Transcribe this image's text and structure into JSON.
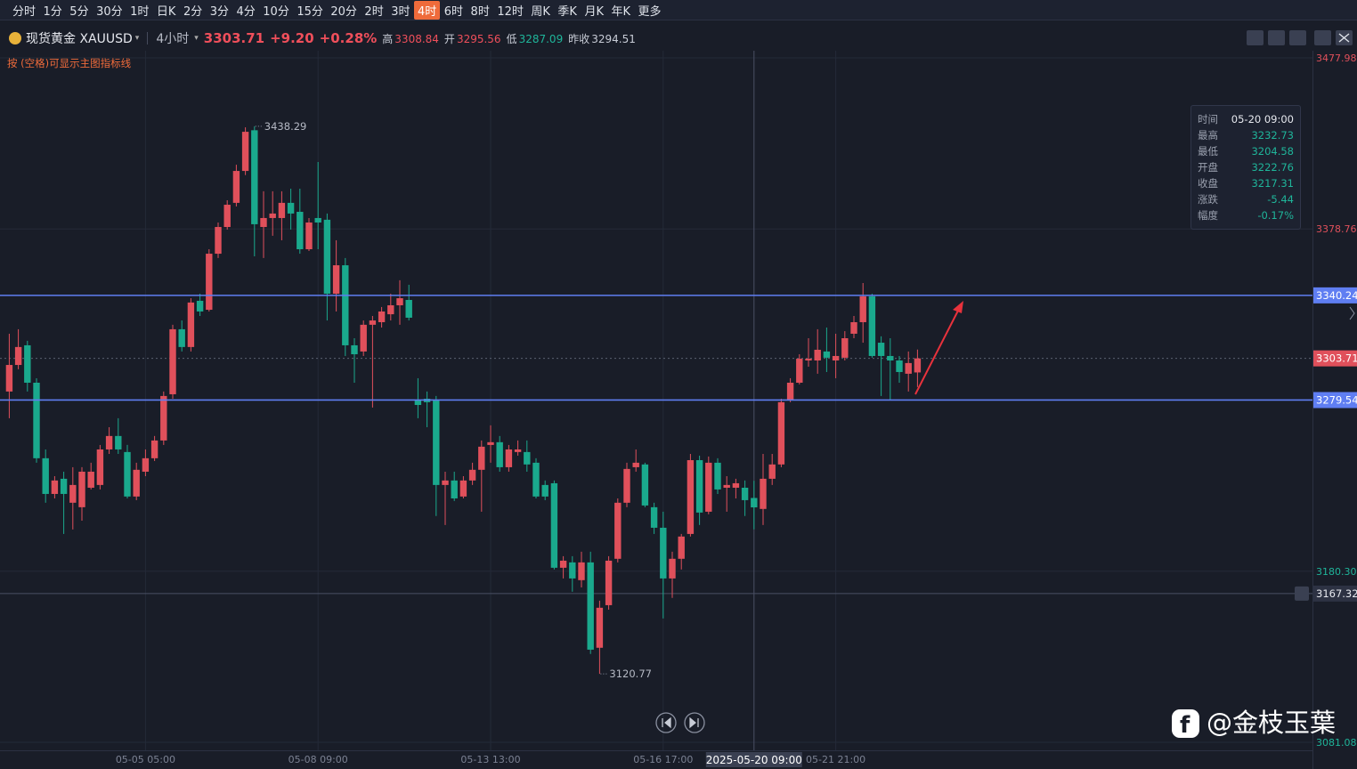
{
  "toolbar": {
    "tabs": [
      {
        "label": "分时"
      },
      {
        "label": "1分"
      },
      {
        "label": "5分"
      },
      {
        "label": "30分"
      },
      {
        "label": "1时"
      },
      {
        "label": "日K"
      },
      {
        "label": "2分"
      },
      {
        "label": "3分"
      },
      {
        "label": "4分"
      },
      {
        "label": "10分"
      },
      {
        "label": "15分"
      },
      {
        "label": "20分"
      },
      {
        "label": "2时"
      },
      {
        "label": "3时"
      },
      {
        "label": "4时",
        "active": true
      },
      {
        "label": "6时"
      },
      {
        "label": "8时"
      },
      {
        "label": "12时"
      },
      {
        "label": "周K"
      },
      {
        "label": "季K"
      },
      {
        "label": "月K"
      },
      {
        "label": "年K"
      },
      {
        "label": "更多"
      }
    ]
  },
  "symbol": {
    "name": "现货黄金 XAUUSD",
    "period": "4小时",
    "last": "3303.71",
    "change": "+9.20",
    "change_pct": "+0.28%",
    "stats": [
      {
        "label": "高",
        "value": "3308.84"
      },
      {
        "label": "开",
        "value": "3295.56"
      },
      {
        "label": "低",
        "value": "3287.09"
      },
      {
        "label": "昨收",
        "value": "3294.51"
      }
    ]
  },
  "hint": "按 (空格)可显示主图指标线",
  "tooltip": {
    "rows": [
      {
        "label": "时间",
        "value": "05-20 09:00"
      },
      {
        "label": "最高",
        "value": "3232.73"
      },
      {
        "label": "最低",
        "value": "3204.58"
      },
      {
        "label": "开盘",
        "value": "3222.76"
      },
      {
        "label": "收盘",
        "value": "3217.31"
      },
      {
        "label": "涨跌",
        "value": "-5.44"
      },
      {
        "label": "幅度",
        "value": "-0.17%"
      }
    ]
  },
  "watermark": "@金枝玉葉",
  "chart_data": {
    "type": "candlestick",
    "categories": [
      null,
      null,
      null,
      null,
      null,
      null,
      null,
      null,
      null,
      null,
      null,
      null,
      null,
      null,
      null,
      "05-05 05:00",
      null,
      null,
      null,
      null,
      null,
      null,
      null,
      null,
      null,
      null,
      null,
      null,
      null,
      null,
      null,
      null,
      null,
      null,
      "05-08 09:00",
      null,
      null,
      null,
      null,
      null,
      null,
      null,
      null,
      null,
      null,
      null,
      null,
      null,
      null,
      null,
      null,
      null,
      null,
      "05-13 13:00",
      null,
      null,
      null,
      null,
      null,
      null,
      null,
      null,
      null,
      null,
      null,
      null,
      null,
      null,
      null,
      null,
      null,
      null,
      "05-16 17:00",
      null,
      null,
      null,
      null,
      null,
      null,
      null,
      null,
      null,
      "2025-05-20 09:00",
      null,
      null,
      null,
      null,
      null,
      null,
      null,
      null,
      "05-21 21:00",
      null,
      null,
      null,
      null,
      null,
      null,
      null,
      null,
      null
    ],
    "open": [
      3284.5,
      3299.9,
      3311.3,
      3289.6,
      3245.8,
      3225.1,
      3233.9,
      3220.0,
      3217.4,
      3228.7,
      3230.3,
      3250.9,
      3258.7,
      3249.4,
      3223.6,
      3238.0,
      3245.8,
      3256.1,
      3282.9,
      3320.6,
      3310.3,
      3337.1,
      3331.9,
      3364.4,
      3379.9,
      3393.9,
      3412.4,
      3436.0,
      3379.9,
      3385.1,
      3385.1,
      3393.9,
      3388.7,
      3367.0,
      3385.1,
      3384.1,
      3341.2,
      3357.7,
      3311.3,
      3307.7,
      3323.2,
      3324.7,
      3329.3,
      3334.5,
      3337.6,
      3279.3,
      3280.3,
      3279.3,
      3230.3,
      3232.9,
      3223.6,
      3232.9,
      3239.1,
      3253.5,
      3255.1,
      3240.6,
      3249.4,
      3249.4,
      3243.2,
      3230.3,
      3231.3,
      3182.3,
      3185.4,
      3175.1,
      3185.4,
      3135.9,
      3160.6,
      3187.5,
      3220.0,
      3240.6,
      3242.2,
      3217.4,
      3205.5,
      3176.1,
      3187.5,
      3201.9,
      3244.7,
      3214.8,
      3243.2,
      3228.7,
      3228.7,
      3228.7,
      3222.76,
      3216.4,
      3233.9,
      3242.2,
      3279.3,
      3289.6,
      3302.5,
      3302.5,
      3307.7,
      3302.5,
      3304.1,
      3318.0,
      3324.7,
      3339.7,
      3312.8,
      3305.1,
      3302.5,
      3294.8,
      3295.56
    ],
    "high": [
      3318.0,
      3320.6,
      3313.9,
      3292.2,
      3250.9,
      3235.4,
      3238.0,
      3240.6,
      3240.6,
      3243.2,
      3253.5,
      3263.8,
      3269.0,
      3253.5,
      3243.2,
      3250.9,
      3258.7,
      3284.5,
      3323.2,
      3325.7,
      3338.6,
      3341.2,
      3367.0,
      3382.5,
      3395.4,
      3416.0,
      3437.7,
      3438.29,
      3400.6,
      3400.6,
      3400.6,
      3402.1,
      3402.1,
      3385.1,
      3417.6,
      3387.7,
      3372.2,
      3361.9,
      3315.4,
      3325.7,
      3328.3,
      3333.5,
      3341.2,
      3349.0,
      3346.4,
      3292.2,
      3284.5,
      3281.9,
      3238.0,
      3238.0,
      3235.4,
      3243.2,
      3256.1,
      3264.9,
      3258.7,
      3253.5,
      3256.1,
      3256.1,
      3245.8,
      3232.9,
      3232.9,
      3189.0,
      3189.0,
      3191.6,
      3191.6,
      3163.2,
      3189.0,
      3222.5,
      3243.2,
      3250.9,
      3243.2,
      3220.0,
      3214.8,
      3191.6,
      3201.9,
      3248.3,
      3247.3,
      3246.8,
      3245.8,
      3235.4,
      3233.9,
      3232.9,
      3232.73,
      3248.3,
      3248.3,
      3280.3,
      3292.2,
      3306.1,
      3315.4,
      3320.6,
      3321.6,
      3318.0,
      3319.5,
      3328.3,
      3347.4,
      3341.2,
      3316.5,
      3315.4,
      3305.1,
      3307.7,
      3308.84
    ],
    "low": [
      3269.0,
      3297.4,
      3284.5,
      3243.2,
      3220.0,
      3222.5,
      3201.9,
      3204.5,
      3209.6,
      3227.7,
      3227.7,
      3248.3,
      3248.3,
      3222.5,
      3221.5,
      3235.4,
      3244.2,
      3253.5,
      3280.3,
      3307.7,
      3307.7,
      3328.3,
      3330.9,
      3361.9,
      3378.4,
      3391.8,
      3410.0,
      3362.9,
      3361.9,
      3374.8,
      3372.2,
      3378.4,
      3364.4,
      3366.0,
      3367.0,
      3325.7,
      3330.9,
      3305.1,
      3289.6,
      3305.1,
      3275.2,
      3321.6,
      3325.7,
      3323.2,
      3325.7,
      3269.0,
      3263.8,
      3212.3,
      3207.1,
      3221.0,
      3222.5,
      3230.3,
      3214.8,
      3243.2,
      3238.0,
      3238.0,
      3247.3,
      3238.0,
      3222.5,
      3221.5,
      3181.3,
      3176.1,
      3168.4,
      3170.9,
      3132.3,
      3120.77,
      3158.0,
      3185.4,
      3217.4,
      3238.0,
      3217.4,
      3201.9,
      3152.9,
      3164.8,
      3181.3,
      3200.4,
      3207.1,
      3213.3,
      3225.1,
      3214.8,
      3222.5,
      3212.3,
      3204.58,
      3207.1,
      3230.3,
      3240.6,
      3278.3,
      3288.6,
      3298.9,
      3294.8,
      3295.8,
      3292.2,
      3302.5,
      3315.4,
      3312.8,
      3304.1,
      3281.9,
      3279.3,
      3289.6,
      3284.5,
      3287.09
    ],
    "close": [
      3299.9,
      3310.3,
      3289.6,
      3245.8,
      3225.1,
      3232.9,
      3225.1,
      3230.3,
      3238.0,
      3238.0,
      3250.9,
      3258.7,
      3250.9,
      3223.6,
      3239.1,
      3245.8,
      3256.1,
      3281.9,
      3320.6,
      3310.3,
      3336.1,
      3330.9,
      3364.4,
      3379.9,
      3392.8,
      3412.4,
      3435.1,
      3381.5,
      3385.1,
      3387.7,
      3393.9,
      3387.7,
      3367.0,
      3382.5,
      3382.5,
      3341.2,
      3357.7,
      3311.3,
      3306.1,
      3323.2,
      3325.7,
      3330.9,
      3334.5,
      3338.6,
      3327.3,
      3276.7,
      3278.3,
      3230.3,
      3232.9,
      3222.5,
      3232.9,
      3239.1,
      3252.5,
      3255.1,
      3240.6,
      3250.9,
      3250.9,
      3242.2,
      3223.6,
      3223.6,
      3182.3,
      3186.4,
      3176.1,
      3185.4,
      3134.8,
      3159.1,
      3186.4,
      3220.0,
      3239.6,
      3243.2,
      3218.4,
      3205.5,
      3176.1,
      3187.5,
      3200.4,
      3244.7,
      3214.3,
      3243.2,
      3227.7,
      3230.3,
      3231.3,
      3221.5,
      3217.31,
      3233.9,
      3242.2,
      3278.3,
      3289.6,
      3303.5,
      3303.5,
      3308.7,
      3304.1,
      3305.1,
      3315.4,
      3324.7,
      3339.7,
      3305.1,
      3305.1,
      3302.5,
      3295.8,
      3301.0,
      3303.71
    ],
    "up_color": "#e0505b",
    "down_color": "#1aa98d",
    "ylim": [
      3081.08,
      3477.98
    ],
    "yticks": [
      3081.08,
      {
        "value": 3180.3,
        "label": "3180.30"
      },
      3378.76,
      3477.98
    ],
    "grid": true,
    "hlines": [
      {
        "value": 3340.24,
        "color": "#5f7ef2"
      },
      {
        "value": 3279.54,
        "color": "#5f7ef2"
      }
    ],
    "crosshair_price": 3167.32
  }
}
